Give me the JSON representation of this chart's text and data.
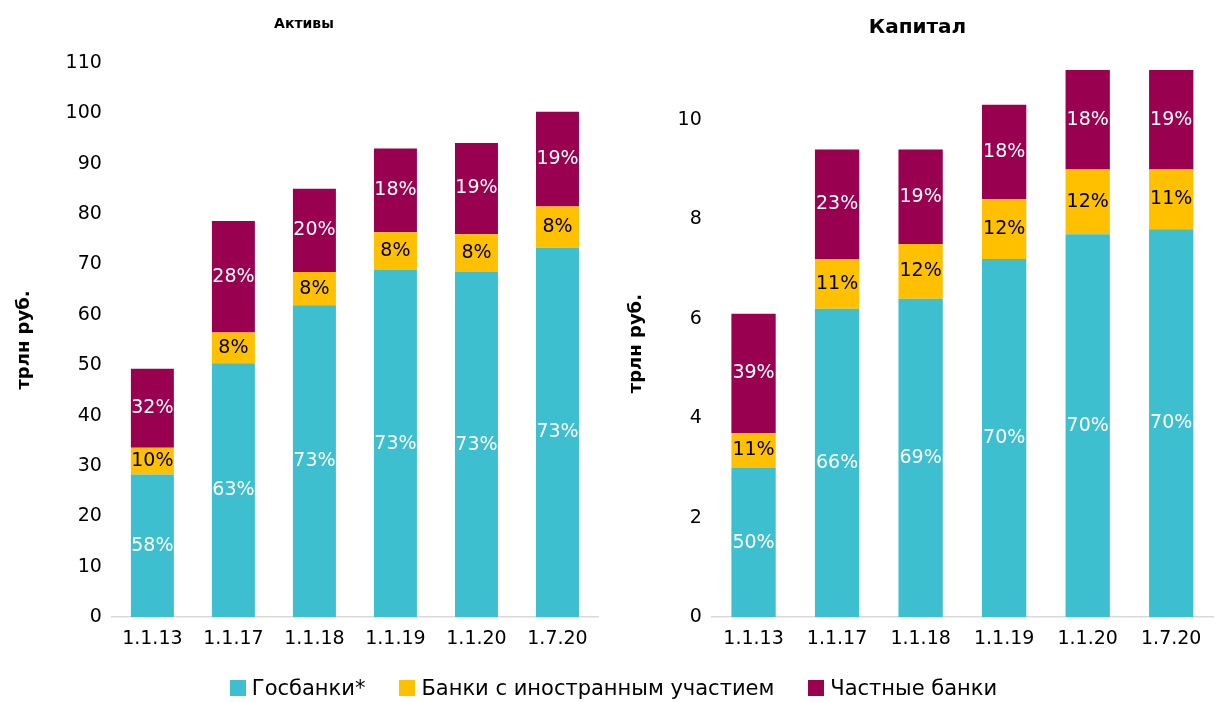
{
  "chart_data": [
    {
      "type": "bar",
      "title": "Активы",
      "ylabel": "трлн руб.",
      "categories": [
        "1.1.13",
        "1.1.17",
        "1.1.18",
        "1.1.19",
        "1.1.20",
        "1.7.20"
      ],
      "stacked": true,
      "ylim": [
        0,
        110
      ],
      "yticks": [
        0,
        10,
        20,
        30,
        40,
        50,
        60,
        70,
        80,
        90,
        100,
        110
      ],
      "grid": false,
      "legend": "bottom",
      "series": [
        {
          "name": "Госбанки*",
          "color": "#3dbfcf",
          "values": [
            28.3,
            50.4,
            61.9,
            68.9,
            68.5,
            73.3
          ]
        },
        {
          "name": "Банки с иностранным участием",
          "color": "#ffc000",
          "values": [
            5.3,
            6.1,
            6.6,
            7.5,
            7.5,
            8.2
          ]
        },
        {
          "name": "Частные банки",
          "color": "#99004f",
          "values": [
            15.7,
            22.1,
            16.5,
            16.6,
            18.1,
            18.8
          ]
        }
      ],
      "annotations": [
        "58%",
        "10%",
        "32%",
        "63%",
        "8%",
        "28%",
        "73%",
        "8%",
        "20%",
        "73%",
        "8%",
        "18%",
        "73%",
        "8%",
        "19%",
        "73%",
        "8%",
        "19%"
      ]
    },
    {
      "type": "bar",
      "title": "Капитал",
      "ylabel": "трлн руб.",
      "categories": [
        "1.1.13",
        "1.1.17",
        "1.1.18",
        "1.1.19",
        "1.1.20",
        "1.7.20"
      ],
      "stacked": true,
      "ylim": [
        0,
        11
      ],
      "yticks": [
        0,
        2,
        4,
        6,
        8,
        10
      ],
      "grid": false,
      "series": [
        {
          "color": "#3dbfcf",
          "values": [
            3.0,
            6.2,
            6.4,
            7.2,
            7.7,
            7.8
          ]
        },
        {
          "color": "#ffc000",
          "values": [
            0.7,
            1.0,
            1.1,
            1.2,
            1.3,
            1.2
          ]
        },
        {
          "color": "#99004f",
          "values": [
            2.4,
            2.2,
            1.9,
            1.9,
            2.0,
            2.0
          ]
        }
      ],
      "annotations": [
        "50%",
        "11%",
        "39%",
        "66%",
        "11%",
        "23%",
        "69%",
        "12%",
        "19%",
        "70%",
        "12%",
        "18%",
        "70%",
        "12%",
        "18%",
        "70%",
        "11%",
        "19%"
      ]
    }
  ]
}
